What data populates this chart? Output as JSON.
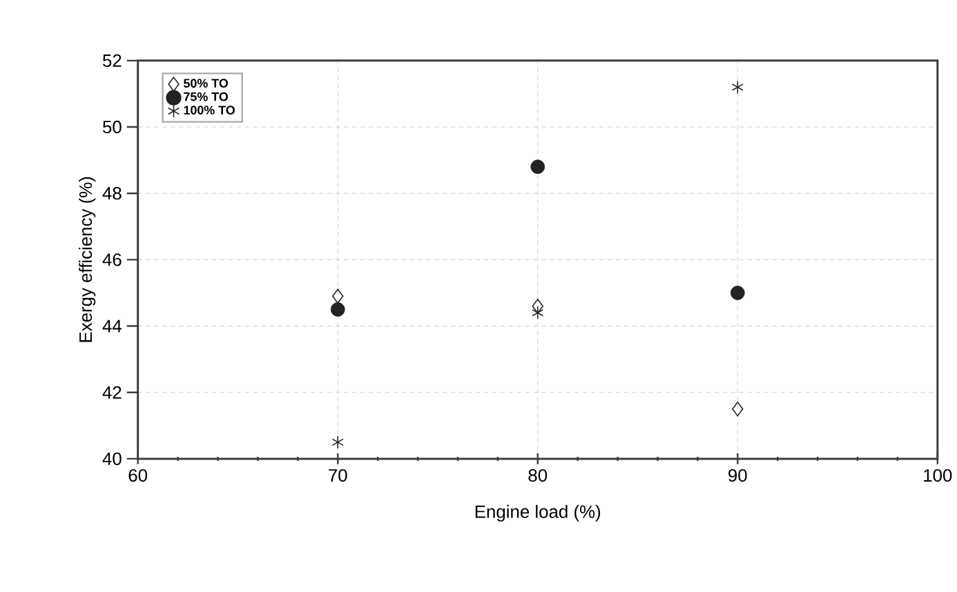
{
  "chart_data": {
    "type": "scatter",
    "xlabel": "Engine load (%)",
    "ylabel": "Exergy efficiency (%)",
    "x": [
      70,
      80,
      90
    ],
    "series": [
      {
        "name": "50% TO",
        "color": "#222222",
        "marker": "diamond",
        "values": [
          44.9,
          44.6,
          41.5
        ]
      },
      {
        "name": "75% TO",
        "color": "#222222",
        "marker": "circle",
        "values": [
          44.5,
          48.8,
          45.0
        ]
      },
      {
        "name": "100% TO",
        "color": "#222222",
        "marker": "cross",
        "values": [
          40.5,
          44.4,
          51.2
        ]
      }
    ],
    "xlim": [
      60,
      100
    ],
    "xticks": [
      60,
      70,
      80,
      90,
      100
    ],
    "ylim": [
      40,
      52
    ],
    "yticks": [
      40,
      42,
      44,
      46,
      48,
      50,
      52
    ],
    "grid": true,
    "legend": "top left"
  }
}
